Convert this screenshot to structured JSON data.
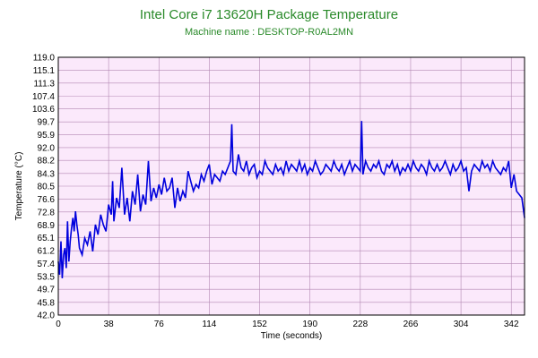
{
  "chart_data": {
    "type": "line",
    "title": "Intel Core i7 13620H Package Temperature",
    "subtitle": "Machine name : DESKTOP-R0AL2MN",
    "xlabel": "Time (seconds)",
    "ylabel": "Temperature (°C)",
    "xlim": [
      0,
      352
    ],
    "ylim": [
      42.0,
      119.0
    ],
    "x_ticks": [
      "0",
      "38",
      "76",
      "114",
      "152",
      "190",
      "228",
      "266",
      "304",
      "342"
    ],
    "y_ticks": [
      "119.0",
      "115.1",
      "111.3",
      "107.4",
      "103.6",
      "99.7",
      "95.9",
      "92.0",
      "88.2",
      "84.3",
      "80.5",
      "76.6",
      "72.8",
      "68.9",
      "65.1",
      "61.2",
      "57.4",
      "53.5",
      "49.7",
      "45.8",
      "42.0"
    ],
    "grid": true,
    "colors": {
      "line": "#0000dd",
      "plot_bg": "#fbe9fb",
      "grid": "#b388b3",
      "title": "#2a8a2a"
    },
    "series": [
      {
        "name": "",
        "x": [
          0,
          1,
          2,
          3,
          4,
          5,
          6,
          7,
          8,
          9,
          10,
          11,
          12,
          13,
          14,
          15,
          16,
          18,
          20,
          22,
          24,
          26,
          28,
          30,
          32,
          34,
          36,
          38,
          40,
          41,
          42,
          44,
          46,
          48,
          50,
          52,
          54,
          56,
          58,
          60,
          62,
          64,
          66,
          68,
          70,
          72,
          74,
          76,
          78,
          80,
          82,
          84,
          86,
          88,
          90,
          92,
          94,
          96,
          98,
          100,
          102,
          104,
          106,
          108,
          110,
          112,
          114,
          116,
          118,
          120,
          122,
          124,
          126,
          128,
          130,
          131,
          132,
          134,
          136,
          138,
          140,
          142,
          144,
          146,
          148,
          150,
          152,
          154,
          156,
          158,
          160,
          162,
          164,
          166,
          168,
          170,
          172,
          174,
          176,
          178,
          180,
          182,
          184,
          186,
          188,
          190,
          192,
          194,
          196,
          198,
          200,
          202,
          204,
          206,
          208,
          210,
          212,
          214,
          216,
          218,
          220,
          222,
          224,
          226,
          228,
          229,
          230,
          232,
          234,
          236,
          238,
          240,
          242,
          244,
          246,
          248,
          250,
          252,
          254,
          256,
          258,
          260,
          262,
          264,
          266,
          268,
          270,
          272,
          274,
          276,
          278,
          280,
          282,
          284,
          286,
          288,
          290,
          292,
          294,
          296,
          298,
          300,
          302,
          304,
          306,
          308,
          310,
          312,
          314,
          316,
          318,
          320,
          322,
          324,
          326,
          328,
          330,
          332,
          334,
          336,
          338,
          340,
          342,
          344,
          346,
          348,
          350,
          352
        ],
        "y": [
          58,
          54,
          64,
          53,
          60,
          62,
          56,
          70,
          58,
          64,
          68,
          71,
          67,
          73,
          69,
          66,
          62,
          60,
          65,
          63,
          67,
          61,
          69,
          66,
          72,
          69,
          67,
          75,
          72,
          82,
          70,
          77,
          74,
          86,
          72,
          77,
          70,
          79,
          75,
          84,
          73,
          78,
          75,
          88,
          76,
          80,
          77,
          81,
          78,
          83,
          79,
          80,
          83,
          74,
          80,
          76,
          79,
          77,
          85,
          82,
          79,
          81,
          80,
          84,
          82,
          85,
          87,
          81,
          84,
          83,
          82,
          85,
          84,
          86,
          88,
          99,
          85,
          84,
          90,
          86,
          85,
          88,
          84,
          86,
          87,
          83,
          85,
          84,
          88,
          86,
          85,
          84,
          87,
          85,
          86,
          84,
          88,
          85,
          87,
          86,
          85,
          88,
          85,
          87,
          84,
          86,
          85,
          88,
          86,
          84,
          85,
          87,
          86,
          85,
          88,
          86,
          85,
          87,
          84,
          86,
          88,
          85,
          87,
          86,
          85,
          100,
          84,
          88,
          86,
          85,
          87,
          86,
          88,
          85,
          84,
          87,
          86,
          88,
          85,
          87,
          84,
          86,
          85,
          87,
          85,
          88,
          86,
          85,
          87,
          86,
          84,
          88,
          86,
          85,
          87,
          85,
          86,
          88,
          86,
          84,
          87,
          85,
          86,
          88,
          85,
          86,
          79,
          85,
          87,
          86,
          85,
          88,
          86,
          87,
          85,
          88,
          86,
          85,
          84,
          86,
          85,
          88,
          80,
          84,
          79,
          78,
          77,
          71
        ]
      }
    ]
  }
}
